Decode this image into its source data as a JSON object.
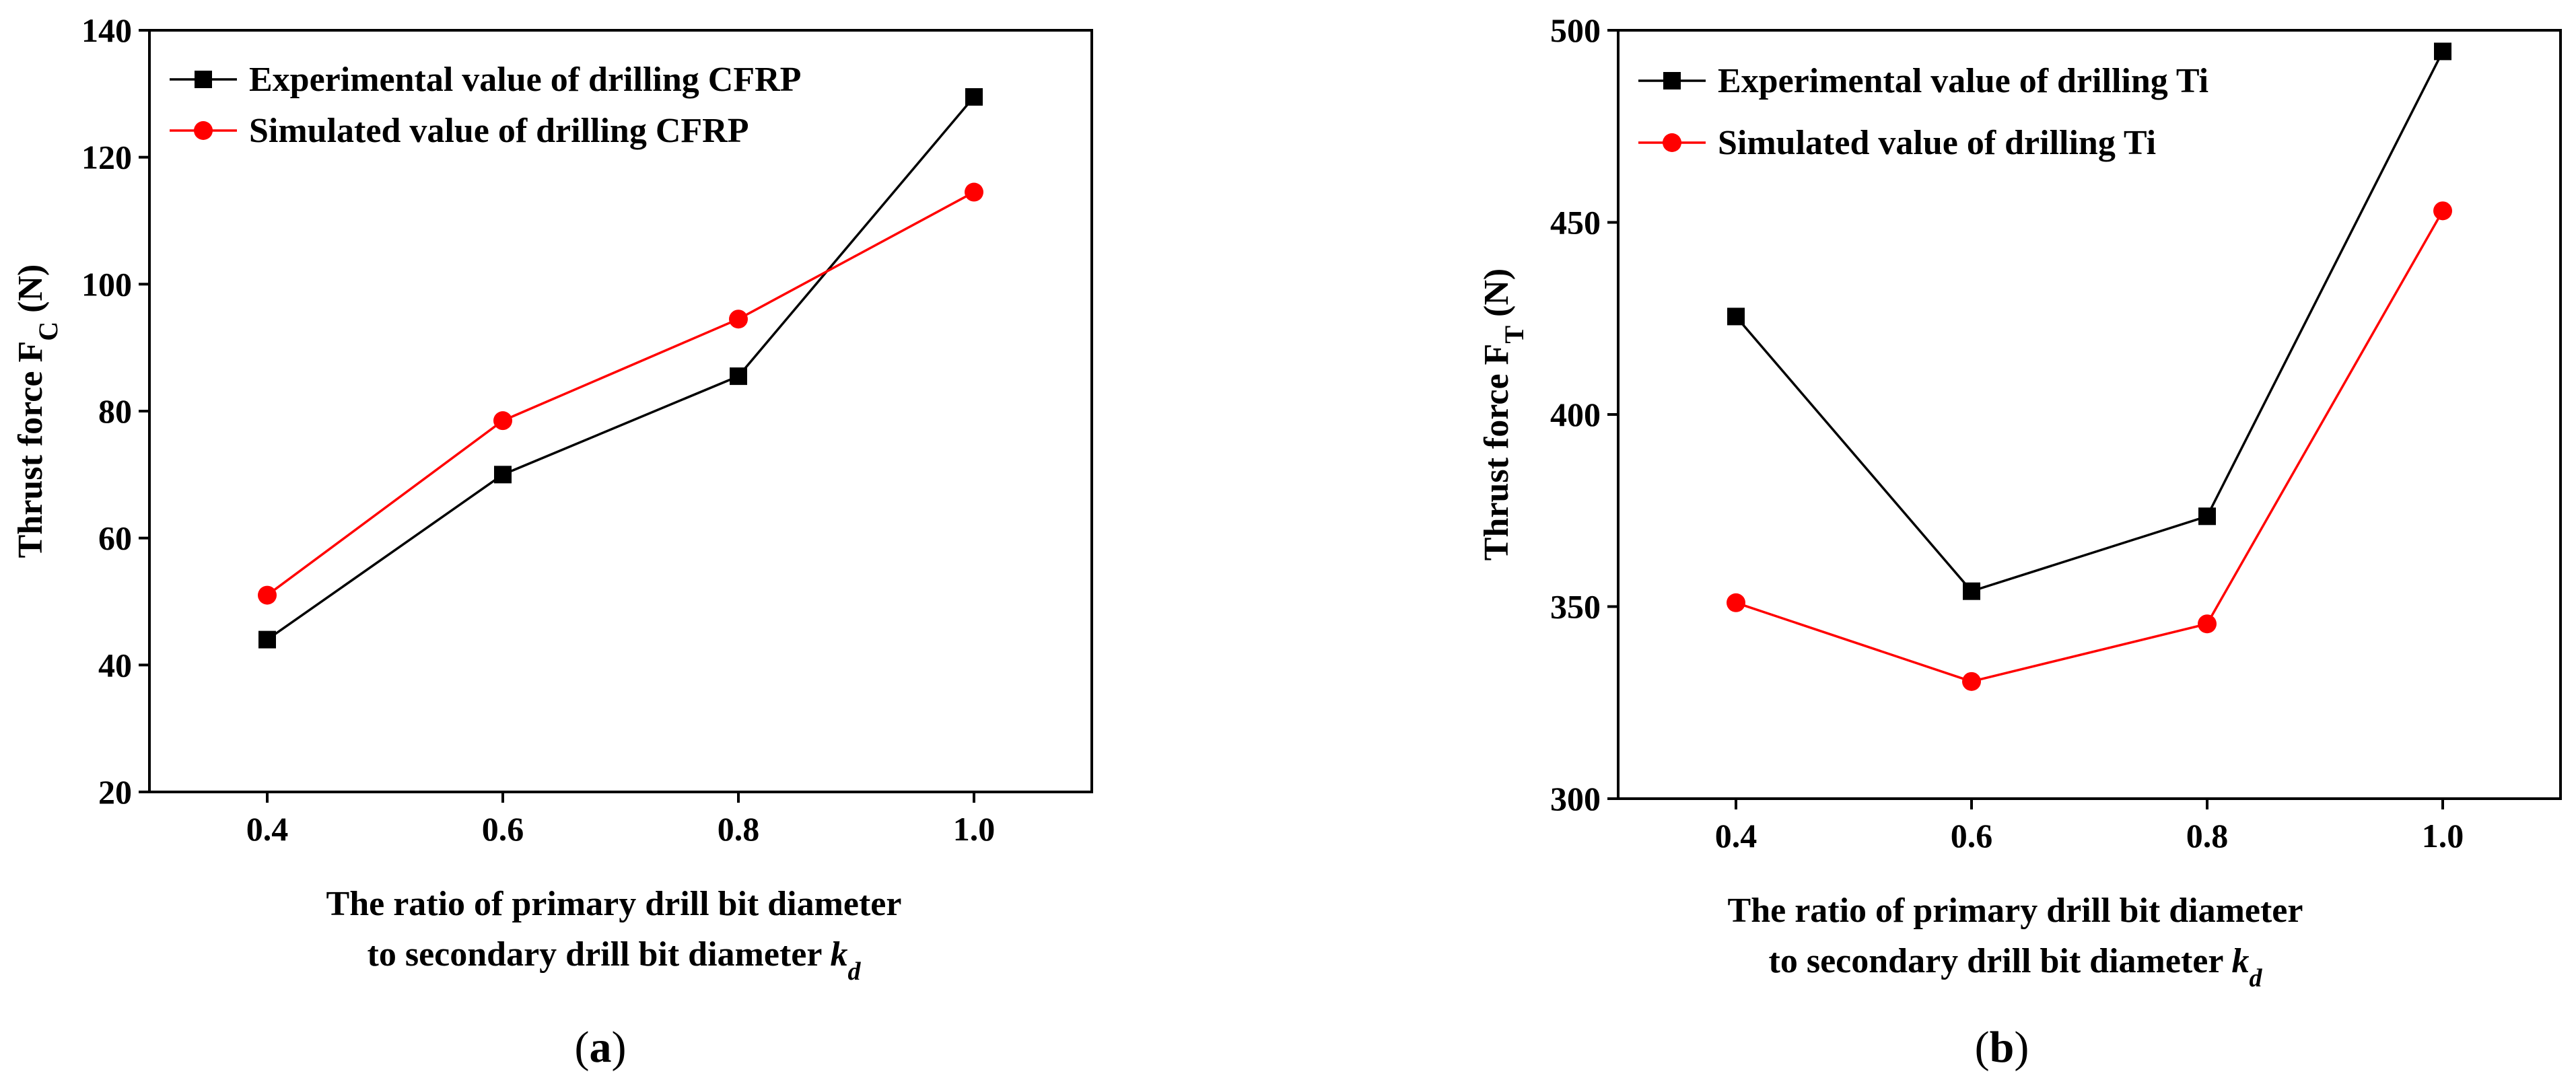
{
  "chart_data": [
    {
      "type": "line",
      "panel_label": "(a)",
      "panel_letter": "a",
      "categories": [
        "0.4",
        "0.6",
        "0.8",
        "1.0"
      ],
      "x": [
        0.4,
        0.6,
        0.8,
        1.0
      ],
      "series": [
        {
          "name": "Experimental value of drilling CFRP",
          "values": [
            44,
            70,
            85.5,
            129.5
          ],
          "color": "#000000",
          "marker": "square"
        },
        {
          "name": "Simulated value of drilling CFRP",
          "values": [
            51,
            78.5,
            94.5,
            114.5
          ],
          "color": "#ff0000",
          "marker": "circle"
        }
      ],
      "ylabel": {
        "prefix": "Thrust force F",
        "sub": "C",
        "suffix": " (N)"
      },
      "xlabel": {
        "line1": "The ratio of primary drill bit diameter",
        "line2_prefix": "to secondary drill bit diameter ",
        "var": "k",
        "var_sub": "d"
      },
      "yticks": [
        "20",
        "40",
        "60",
        "80",
        "100",
        "120",
        "140"
      ],
      "ylim": [
        20,
        140
      ],
      "xlim": [
        0.3,
        1.1
      ],
      "legend_position": "top-left"
    },
    {
      "type": "line",
      "panel_label": "(b)",
      "panel_letter": "b",
      "categories": [
        "0.4",
        "0.6",
        "0.8",
        "1.0"
      ],
      "x": [
        0.4,
        0.6,
        0.8,
        1.0
      ],
      "series": [
        {
          "name": "Experimental value of drilling Ti",
          "values": [
            425.5,
            354,
            373.5,
            494.5
          ],
          "color": "#000000",
          "marker": "square"
        },
        {
          "name": "Simulated value of drilling Ti",
          "values": [
            351,
            330.5,
            345.5,
            453
          ],
          "color": "#ff0000",
          "marker": "circle"
        }
      ],
      "ylabel": {
        "prefix": "Thrust force F",
        "sub": "T",
        "suffix": " (N)"
      },
      "xlabel": {
        "line1": "The ratio of primary drill bit diameter",
        "line2_prefix": "to secondary drill bit diameter ",
        "var": "k",
        "var_sub": "d"
      },
      "yticks": [
        "300",
        "350",
        "400",
        "450",
        "500"
      ],
      "ylim": [
        300,
        500
      ],
      "xlim": [
        0.3,
        1.1
      ],
      "legend_position": "top-left"
    }
  ]
}
